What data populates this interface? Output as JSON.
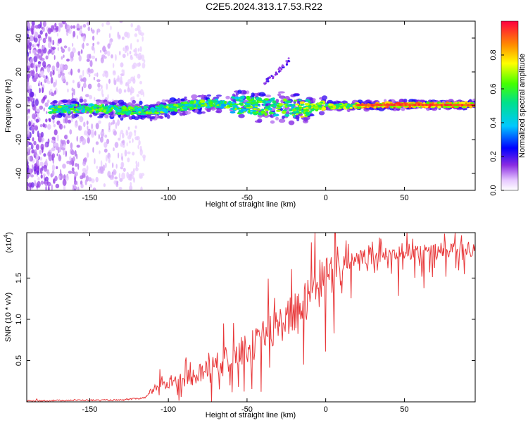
{
  "title": "C2E5.2024.313.17.53.R22",
  "chart_data": [
    {
      "type": "heatmap",
      "xlabel": "Height of straight line (km)",
      "ylabel": "Frequency (Hz)",
      "xlim": [
        -190,
        95
      ],
      "ylim": [
        -50,
        50
      ],
      "x_ticks": [
        "-150",
        "-100",
        "-50",
        "0",
        "50"
      ],
      "y_ticks": [
        "-40",
        "-20",
        "0",
        "20",
        "40"
      ],
      "colorbar": {
        "label": "Normalized spectral amplitude",
        "range": [
          0,
          1
        ],
        "ticks": [
          "0.0",
          "0.2",
          "0.4",
          "0.6",
          "0.8"
        ]
      },
      "ridge": {
        "x": [
          -170,
          -150,
          -130,
          -110,
          -90,
          -70,
          -50,
          -30,
          -15,
          -5,
          0,
          5,
          20,
          40,
          60,
          80,
          95
        ],
        "y": [
          -2,
          -1.5,
          -2.5,
          -3,
          0,
          1.5,
          0,
          -1,
          -1.5,
          -0.5,
          0.5,
          -0.5,
          0,
          0.5,
          0.5,
          0.5,
          0.5
        ]
      }
    },
    {
      "type": "line",
      "xlabel": "Height of straight line (km)",
      "ylabel": "SNR (10 * v/v)",
      "y_scale_label": "(x10",
      "y_scale_exp": "4",
      "xlim": [
        -190,
        95
      ],
      "ylim": [
        0,
        2.05
      ],
      "x_ticks": [
        "-150",
        "-100",
        "-50",
        "0",
        "50"
      ],
      "y_ticks": [
        "0.5",
        "1.0",
        "1.5"
      ],
      "color": "#e8383a",
      "series": [
        {
          "x": [
            -190,
            -160,
            -130,
            -115,
            -110,
            -105,
            -95,
            -85,
            -75,
            -65,
            -55,
            -45,
            -35,
            -25,
            -15,
            -10,
            -5,
            0,
            5,
            10,
            15,
            20,
            25,
            30,
            40,
            50,
            60,
            70,
            80,
            95
          ],
          "y": [
            0.01,
            0.02,
            0.02,
            0.05,
            0.15,
            0.2,
            0.25,
            0.3,
            0.4,
            0.5,
            0.6,
            0.7,
            0.85,
            1.0,
            1.15,
            1.3,
            1.45,
            1.55,
            1.6,
            1.65,
            1.7,
            1.72,
            1.75,
            1.78,
            1.8,
            1.82,
            1.83,
            1.83,
            1.84,
            1.84
          ]
        }
      ]
    }
  ]
}
